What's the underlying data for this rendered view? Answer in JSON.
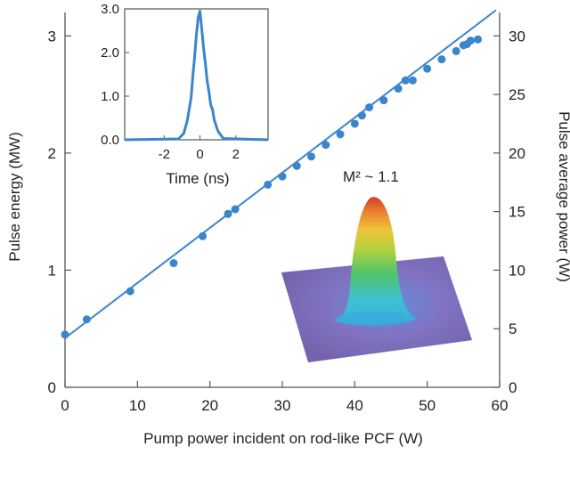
{
  "chart_data": [
    {
      "type": "scatter",
      "xlabel": "Pump power incident on rod-like PCF (W)",
      "ylabel": "Pulse energy (MW)",
      "ylabel_right": "Pulse average power (W)",
      "xlim": [
        0,
        60
      ],
      "ylim": [
        0,
        3.2
      ],
      "ylim_right": [
        0,
        32
      ],
      "xticks": [
        "0",
        "10",
        "20",
        "30",
        "40",
        "50",
        "60"
      ],
      "yticks": [
        "0",
        "1",
        "2",
        "3"
      ],
      "yticks_right": [
        "0",
        "5",
        "10",
        "15",
        "20",
        "25",
        "30"
      ],
      "grid": false,
      "series": [
        {
          "x": [
            0,
            3,
            9,
            15,
            19,
            22.5,
            23.5,
            28,
            30,
            32,
            34,
            36,
            38,
            40,
            41,
            42,
            44,
            46,
            47,
            48,
            50,
            52,
            54,
            55,
            55.5,
            56,
            57
          ],
          "y": [
            0.45,
            0.58,
            0.82,
            1.06,
            1.29,
            1.48,
            1.52,
            1.73,
            1.8,
            1.89,
            1.97,
            2.07,
            2.16,
            2.25,
            2.32,
            2.39,
            2.45,
            2.55,
            2.62,
            2.62,
            2.72,
            2.8,
            2.87,
            2.92,
            2.93,
            2.96,
            2.97
          ]
        }
      ],
      "fit_line": {
        "x": [
          0,
          59.5
        ],
        "y": [
          0.42,
          3.22
        ]
      },
      "color": "#3a85cc"
    },
    {
      "type": "line",
      "xlabel": "Time (ns)",
      "ylabel": "",
      "xlim": [
        -4.2,
        3.8
      ],
      "ylim": [
        0,
        3.0
      ],
      "xticks": [
        "-2",
        "0",
        "2"
      ],
      "yticks": [
        "0.0",
        "1.0",
        "2.0",
        "3.0"
      ],
      "series": [
        {
          "x": [
            -4.2,
            -1.2,
            -0.9,
            -0.7,
            -0.5,
            -0.4,
            -0.3,
            -0.2,
            -0.1,
            0.0,
            0.1,
            0.2,
            0.3,
            0.4,
            0.5,
            0.6,
            0.7,
            0.8,
            1.0,
            1.3,
            3.8
          ],
          "y": [
            0.0,
            0.02,
            0.15,
            0.45,
            0.95,
            1.45,
            1.9,
            2.4,
            2.8,
            2.95,
            2.55,
            2.1,
            1.75,
            1.35,
            1.1,
            0.8,
            0.7,
            0.45,
            0.2,
            0.03,
            0.0
          ]
        }
      ],
      "color": "#3a85cc"
    }
  ],
  "annotation": {
    "beam_label": "M² ~ 1.1"
  },
  "beam_colors": [
    "#6a5aa8",
    "#3f78d0",
    "#38b6d8",
    "#4fc46c",
    "#b7d23c",
    "#f0c23a",
    "#e8782c",
    "#d63a28"
  ]
}
